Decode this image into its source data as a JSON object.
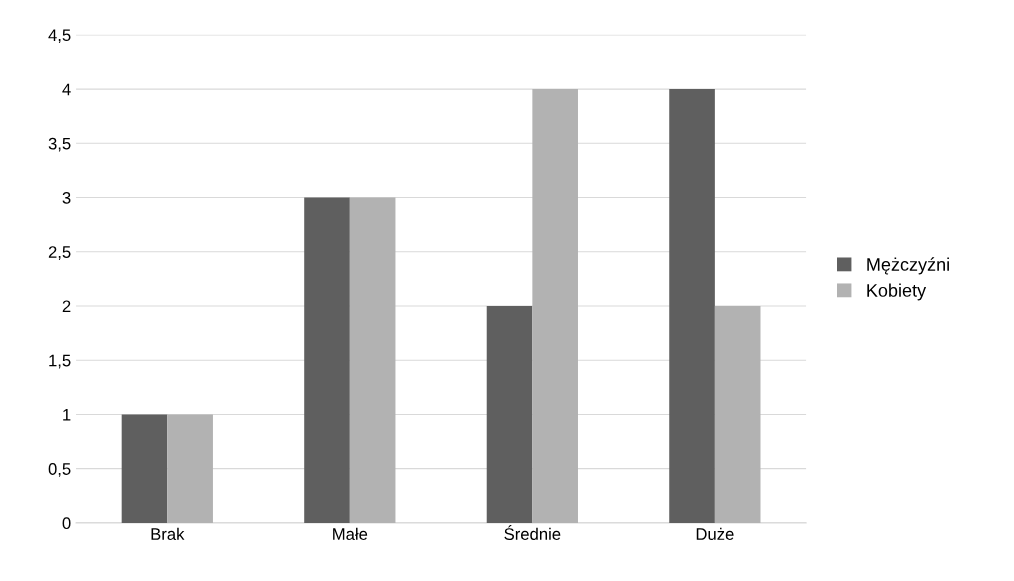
{
  "chart_data": {
    "type": "bar",
    "categories": [
      "Brak",
      "Małe",
      "Średnie",
      "Duże"
    ],
    "series": [
      {
        "name": "Mężczyźni",
        "color": "#5f5f5f",
        "values": [
          1,
          3,
          2,
          4
        ]
      },
      {
        "name": "Kobiety",
        "color": "#b2b2b2",
        "values": [
          1,
          3,
          4,
          2
        ]
      }
    ],
    "ylim": [
      0,
      4.5
    ],
    "yticks": [
      0,
      {
        "value": 0.5,
        "label": "0,5"
      },
      1,
      {
        "value": 1.5,
        "label": "1,5"
      },
      2,
      {
        "value": 2.5,
        "label": "2,5"
      },
      3,
      {
        "value": 3.5,
        "label": "3,5"
      },
      4,
      {
        "value": 4.5,
        "label": "4,5"
      }
    ],
    "grid": "y",
    "legend": "right"
  }
}
